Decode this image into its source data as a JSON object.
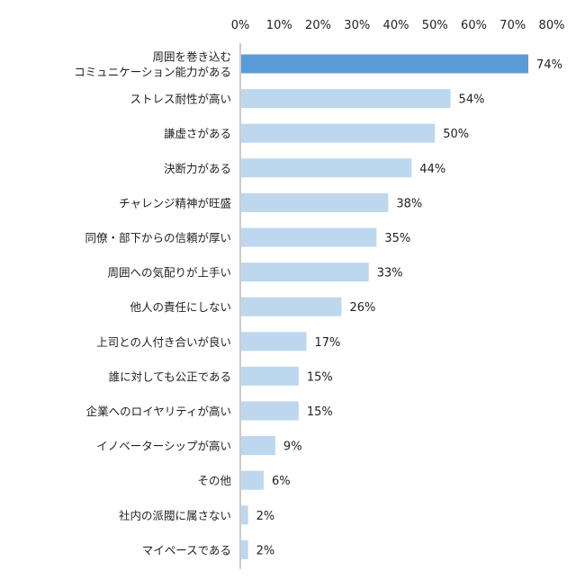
{
  "chart_data": {
    "type": "bar",
    "orientation": "horizontal",
    "categories": [
      [
        "周囲を巻き込む",
        "コミュニケーション能力がある"
      ],
      [
        "ストレス耐性が高い"
      ],
      [
        "謙虚さがある"
      ],
      [
        "決断力がある"
      ],
      [
        "チャレンジ精神が旺盛"
      ],
      [
        "同僚・部下からの信頼が厚い"
      ],
      [
        "周囲への気配りが上手い"
      ],
      [
        "他人の責任にしない"
      ],
      [
        "上司との人付き合いが良い"
      ],
      [
        "誰に対しても公正である"
      ],
      [
        "企業へのロイヤリティが高い"
      ],
      [
        "イノベーターシップが高い"
      ],
      [
        "その他"
      ],
      [
        "社内の派閥に属さない"
      ],
      [
        "マイペースである"
      ]
    ],
    "values": [
      74,
      54,
      50,
      44,
      38,
      35,
      33,
      26,
      17,
      15,
      15,
      9,
      6,
      2,
      2
    ],
    "value_labels": [
      "74%",
      "54%",
      "50%",
      "44%",
      "38%",
      "35%",
      "33%",
      "26%",
      "17%",
      "15%",
      "15%",
      "9%",
      "6%",
      "2%",
      "2%"
    ],
    "x_ticks": [
      "0%",
      "10%",
      "20%",
      "30%",
      "40%",
      "50%",
      "60%",
      "70%",
      "80%"
    ],
    "xlim": [
      0,
      80
    ],
    "axis_position": "top",
    "grid": false,
    "colors": {
      "highlight": "#5b9bd5",
      "default": "#bdd7ee"
    },
    "highlight_index": 0
  }
}
